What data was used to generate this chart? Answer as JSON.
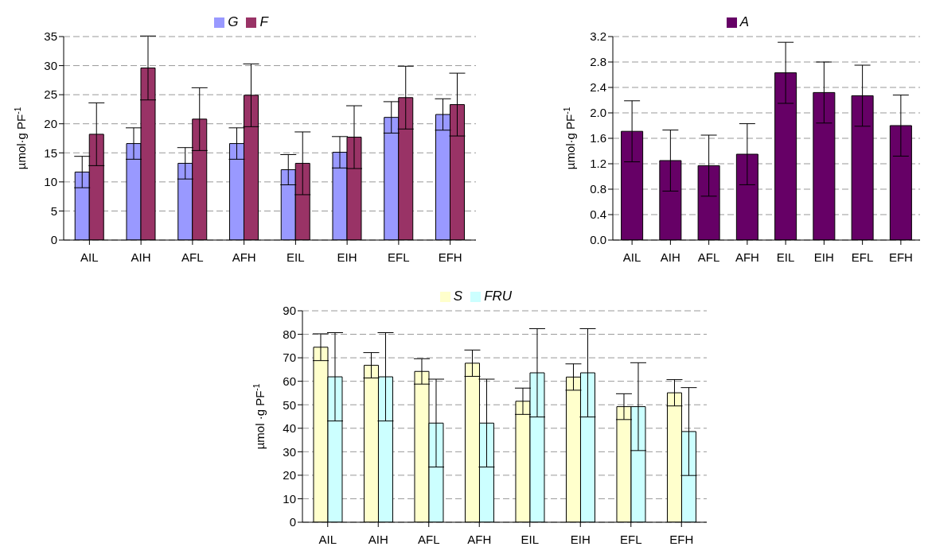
{
  "chart_data": [
    {
      "type": "bar",
      "categories": [
        "AIL",
        "AIH",
        "AFL",
        "AFH",
        "EIL",
        "EIH",
        "EFL",
        "EFH"
      ],
      "ylabel": "µmol·g PF$^{-1}$",
      "ylim": [
        0,
        35
      ],
      "yticks": [
        0,
        5,
        10,
        15,
        20,
        25,
        30,
        35
      ],
      "grid": "y",
      "legend": "top",
      "series": [
        {
          "name": "G",
          "color": "#9999ff",
          "values": [
            11.7,
            16.6,
            13.2,
            16.6,
            12.1,
            15.1,
            21.1,
            21.6
          ],
          "errors": [
            2.7,
            2.7,
            2.7,
            2.7,
            2.6,
            2.7,
            2.7,
            2.7
          ]
        },
        {
          "name": "F",
          "color": "#993366",
          "values": [
            18.2,
            29.6,
            20.8,
            24.9,
            13.2,
            17.7,
            24.5,
            23.3
          ],
          "errors": [
            5.4,
            5.5,
            5.4,
            5.4,
            5.4,
            5.4,
            5.4,
            5.4
          ]
        }
      ]
    },
    {
      "type": "bar",
      "categories": [
        "AIL",
        "AIH",
        "AFL",
        "AFH",
        "EIL",
        "EIH",
        "EFL",
        "EFH"
      ],
      "ylabel": "µmol·g PF$^{-1}$",
      "ylim": [
        0,
        3.2
      ],
      "yticks": [
        {
          "value": 0,
          "label": "0.0"
        },
        {
          "value": 0.4,
          "label": "0.4"
        },
        {
          "value": 0.8,
          "label": "0.8"
        },
        {
          "value": 1.2,
          "label": "1.2"
        },
        {
          "value": 1.6,
          "label": "1.6"
        },
        {
          "value": 2,
          "label": "2.0"
        },
        {
          "value": 2.4,
          "label": "2.4"
        },
        {
          "value": 2.8,
          "label": "2.8"
        },
        {
          "value": 3.2,
          "label": "3.2"
        }
      ],
      "grid": "y",
      "legend": "top",
      "series": [
        {
          "name": "A",
          "color": "#660066",
          "values": [
            1.71,
            1.25,
            1.17,
            1.35,
            2.63,
            2.32,
            2.27,
            1.8
          ],
          "errors": [
            0.48,
            0.48,
            0.48,
            0.48,
            0.48,
            0.48,
            0.48,
            0.48
          ]
        }
      ]
    },
    {
      "type": "bar",
      "categories": [
        "AIL",
        "AIH",
        "AFL",
        "AFH",
        "EIL",
        "EIH",
        "EFL",
        "EFH"
      ],
      "ylabel": "µmol ·g PF$^{-1}$",
      "ylim": [
        0,
        90
      ],
      "yticks": [
        0,
        10,
        20,
        30,
        40,
        50,
        60,
        70,
        80,
        90
      ],
      "grid": "y",
      "legend": "top",
      "series": [
        {
          "name": "S",
          "color": "#ffffcc",
          "values": [
            74.5,
            66.8,
            64.2,
            67.7,
            51.5,
            61.8,
            49.2,
            55.1
          ],
          "errors": [
            5.7,
            5.4,
            5.4,
            5.6,
            5.6,
            5.6,
            5.5,
            5.6
          ]
        },
        {
          "name": "FRU",
          "color": "#ccffff",
          "values": [
            61.9,
            61.9,
            42.2,
            42.2,
            63.6,
            63.6,
            49.2,
            38.6
          ],
          "errors": [
            18.8,
            18.8,
            18.7,
            18.7,
            18.8,
            18.8,
            18.7,
            18.7
          ]
        }
      ]
    }
  ]
}
